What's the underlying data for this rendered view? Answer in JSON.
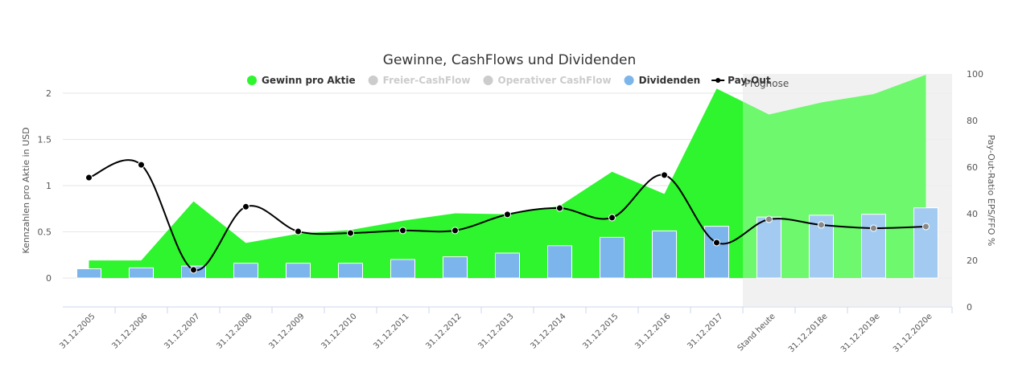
{
  "chart_data": {
    "type": "combo",
    "title": "Gewinne, CashFlows und Dividenden",
    "y_label": "Kennzahlen pro Aktie in USD",
    "y2_label": "Pay-Out-Ratio EPS/FFO %",
    "categories": [
      "31.12.2005",
      "31.12.2006",
      "31.12.2007",
      "31.12.2008",
      "31.12.2009",
      "31.12.2010",
      "31.12.2011",
      "31.12.2012",
      "31.12.2013",
      "31.12.2014",
      "31.12.2015",
      "31.12.2016",
      "31.12.2017",
      "Stand heute",
      "31.12.2018e",
      "31.12.2019e",
      "31.12.2020e"
    ],
    "ylim": [
      -0.313,
      2.209
    ],
    "yticks": [
      0,
      0.5,
      1,
      1.5,
      2
    ],
    "y2lim": [
      0,
      100
    ],
    "y2ticks": [
      0,
      20,
      40,
      60,
      80,
      100
    ],
    "plot_band": {
      "label": "Prognose",
      "from": "Stand heute"
    },
    "series": [
      {
        "name": "Gewinn pro Aktie",
        "type": "area",
        "color": "#2ef52e",
        "values": [
          0.19,
          0.19,
          0.83,
          0.38,
          0.48,
          0.52,
          0.62,
          0.7,
          0.69,
          0.78,
          1.15,
          0.91,
          2.05,
          1.77,
          1.9,
          1.99,
          2.2
        ]
      },
      {
        "name": "Freier-CashFlow",
        "visible": false,
        "color": "#cccccc"
      },
      {
        "name": "Operativer CashFlow",
        "visible": false,
        "color": "#cccccc"
      },
      {
        "name": "Dividenden",
        "type": "bar",
        "color": "#7cb5ec",
        "values": [
          0.1,
          0.11,
          0.13,
          0.16,
          0.16,
          0.16,
          0.2,
          0.23,
          0.27,
          0.35,
          0.44,
          0.51,
          0.56,
          0.66,
          0.68,
          0.69,
          0.76
        ]
      },
      {
        "name": "Pay-Out",
        "type": "spline",
        "axis": "y2",
        "color": "#000000",
        "values": [
          55.5,
          61,
          15.9,
          43,
          32.4,
          31.7,
          32.8,
          32.8,
          39.7,
          42.4,
          38.3,
          56.6,
          27.6,
          37.6,
          35.2,
          33.8,
          34.5
        ]
      }
    ]
  }
}
